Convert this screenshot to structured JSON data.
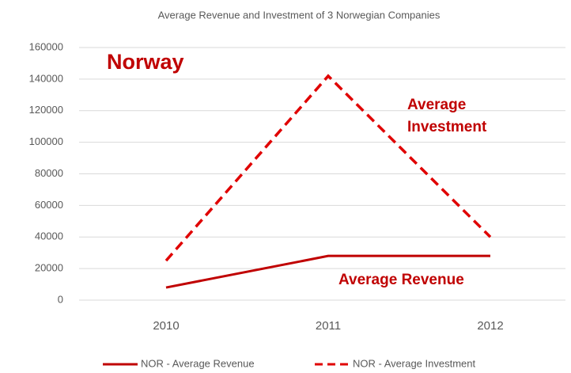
{
  "chart_data": {
    "type": "line",
    "title": "Average Revenue and Investment of 3 Norwegian Companies",
    "categories": [
      "2010",
      "2011",
      "2012"
    ],
    "series": [
      {
        "name": "NOR - Average Revenue",
        "color": "#c00000",
        "dash": "solid",
        "values": [
          8000,
          28000,
          28000
        ]
      },
      {
        "name": "NOR - Average Investment",
        "color": "#e00000",
        "dash": "dashed",
        "values": [
          25000,
          142000,
          40000
        ]
      }
    ],
    "ylim": [
      0,
      160000
    ],
    "yticks": [
      0,
      20000,
      40000,
      60000,
      80000,
      100000,
      120000,
      140000,
      160000
    ],
    "grid": true,
    "legend": "bottom",
    "annotations": [
      {
        "lines": [
          "Norway"
        ]
      },
      {
        "lines": [
          "Average",
          "Investment"
        ]
      },
      {
        "lines": [
          "Average Revenue"
        ]
      }
    ]
  }
}
